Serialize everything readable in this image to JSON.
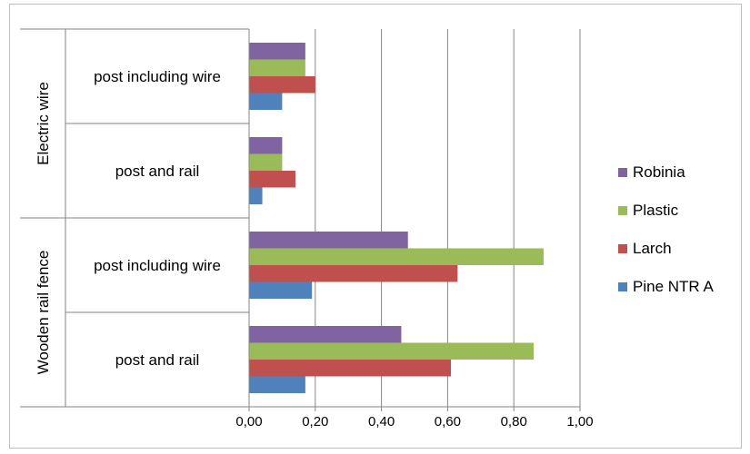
{
  "chart_data": {
    "type": "bar",
    "orientation": "horizontal",
    "groups": [
      {
        "name": "Electric wire",
        "categories": [
          "post including wire",
          "post and rail"
        ]
      },
      {
        "name": "Wooden rail fence",
        "categories": [
          "post including wire",
          "post and rail"
        ]
      }
    ],
    "categories": [
      "Electric wire | post including wire",
      "Electric wire | post and rail",
      "Wooden rail fence | post including wire",
      "Wooden rail fence | post and rail"
    ],
    "series": [
      {
        "name": "Robinia",
        "color": "#8064a2",
        "values": [
          0.17,
          0.1,
          0.48,
          0.46
        ]
      },
      {
        "name": "Plastic",
        "color": "#9bbb59",
        "values": [
          0.17,
          0.1,
          0.89,
          0.86
        ]
      },
      {
        "name": "Larch",
        "color": "#c0504d",
        "values": [
          0.2,
          0.14,
          0.63,
          0.61
        ]
      },
      {
        "name": "Pine NTR A",
        "color": "#4f81bd",
        "values": [
          0.1,
          0.04,
          0.19,
          0.17
        ]
      }
    ],
    "xlim": [
      0,
      1.0
    ],
    "xticks": [
      "0,00",
      "0,20",
      "0,40",
      "0,60",
      "0,80",
      "1,00"
    ],
    "grid": true,
    "legend_position": "right"
  }
}
